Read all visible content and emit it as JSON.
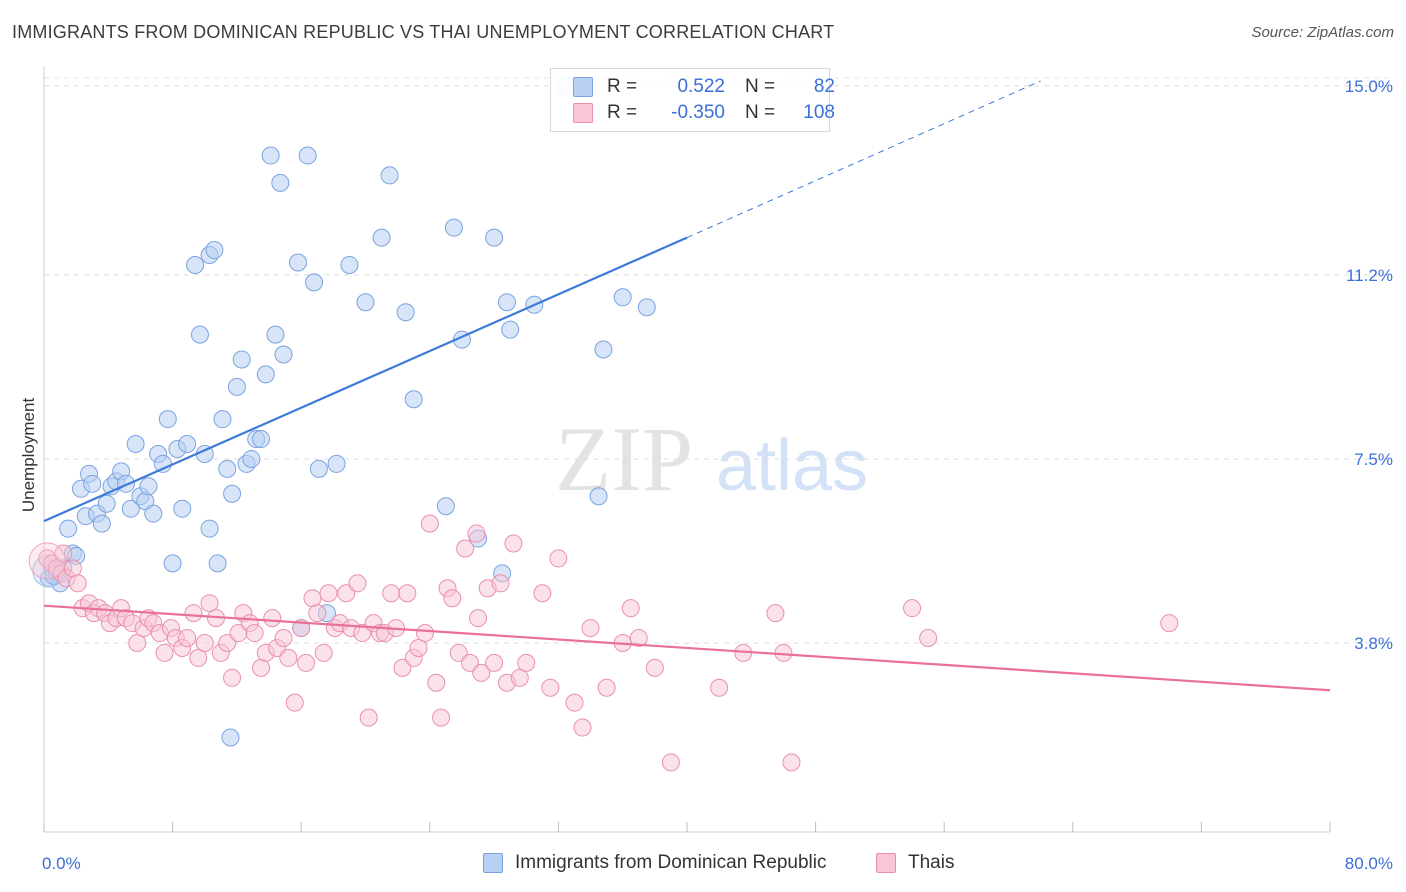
{
  "title": "IMMIGRANTS FROM DOMINICAN REPUBLIC VS THAI UNEMPLOYMENT CORRELATION CHART",
  "source": "Source: ZipAtlas.com",
  "watermark": {
    "zip": "ZIP",
    "atlas": "atlas"
  },
  "legend_top": {
    "r_label": "R =",
    "n_label": "N =",
    "rows": [
      {
        "r": "0.522",
        "n": "82",
        "fill": "#b8d0f3",
        "stroke": "#7aa3e0"
      },
      {
        "r": "-0.350",
        "n": "108",
        "fill": "#f8c6d6",
        "stroke": "#e990ad"
      }
    ]
  },
  "legend_bottom": [
    {
      "label": "Immigrants from Dominican Republic",
      "fill": "#b8d0f3",
      "stroke": "#7aa3e0"
    },
    {
      "label": "Thais",
      "fill": "#f8c6d6",
      "stroke": "#e990ad"
    }
  ],
  "chart_data": {
    "type": "scatter",
    "title": "IMMIGRANTS FROM DOMINICAN REPUBLIC VS THAI UNEMPLOYMENT CORRELATION CHART",
    "xlabel": "",
    "ylabel": "Unemployment",
    "xlim": [
      0,
      80
    ],
    "ylim": [
      0,
      15.4
    ],
    "x_tick_labels": [
      "0.0%",
      "80.0%"
    ],
    "y_ticks": [
      3.8,
      7.5,
      11.2,
      15.0
    ],
    "y_tick_labels": [
      "3.8%",
      "7.5%",
      "11.2%",
      "15.0%"
    ],
    "grid": true,
    "colors": {
      "blue": "#3b7ad8",
      "pink": "#e8709a",
      "blue_fill": "#b8d0f3",
      "pink_fill": "#f8c6d6"
    },
    "series": [
      {
        "name": "Immigrants from Dominican Republic",
        "color": "#3b7ad8",
        "trend": {
          "x": [
            0,
            40
          ],
          "y": [
            6.25,
            11.95
          ],
          "extended_to": [
            62,
            15.1
          ]
        },
        "points": [
          [
            0.3,
            5.1
          ],
          [
            0.5,
            5.3
          ],
          [
            0.8,
            5.2
          ],
          [
            1.0,
            5.0
          ],
          [
            1.2,
            5.3
          ],
          [
            1.5,
            6.1
          ],
          [
            1.8,
            5.6
          ],
          [
            2.0,
            5.55
          ],
          [
            2.3,
            6.9
          ],
          [
            2.6,
            6.35
          ],
          [
            2.8,
            7.2
          ],
          [
            3.0,
            7.0
          ],
          [
            3.3,
            6.4
          ],
          [
            3.6,
            6.2
          ],
          [
            3.9,
            6.6
          ],
          [
            4.2,
            6.95
          ],
          [
            4.5,
            7.05
          ],
          [
            4.8,
            7.25
          ],
          [
            5.1,
            7.0
          ],
          [
            5.4,
            6.5
          ],
          [
            5.7,
            7.8
          ],
          [
            6.0,
            6.75
          ],
          [
            6.3,
            6.65
          ],
          [
            6.5,
            6.95
          ],
          [
            6.8,
            6.4
          ],
          [
            7.1,
            7.6
          ],
          [
            7.4,
            7.4
          ],
          [
            7.7,
            8.3
          ],
          [
            8.0,
            5.4
          ],
          [
            8.3,
            7.7
          ],
          [
            8.6,
            6.5
          ],
          [
            8.9,
            7.8
          ],
          [
            9.4,
            11.4
          ],
          [
            9.7,
            10.0
          ],
          [
            10.0,
            7.6
          ],
          [
            10.3,
            11.6
          ],
          [
            10.6,
            11.7
          ],
          [
            10.3,
            6.1
          ],
          [
            10.8,
            5.4
          ],
          [
            11.1,
            8.3
          ],
          [
            11.4,
            7.3
          ],
          [
            11.7,
            6.8
          ],
          [
            12.0,
            8.95
          ],
          [
            12.3,
            9.5
          ],
          [
            12.6,
            7.4
          ],
          [
            12.9,
            7.5
          ],
          [
            13.2,
            7.9
          ],
          [
            13.5,
            7.9
          ],
          [
            13.8,
            9.2
          ],
          [
            14.1,
            13.6
          ],
          [
            14.4,
            10.0
          ],
          [
            14.7,
            13.05
          ],
          [
            14.9,
            9.6
          ],
          [
            15.8,
            11.45
          ],
          [
            16.0,
            4.1
          ],
          [
            16.4,
            13.6
          ],
          [
            16.8,
            11.05
          ],
          [
            17.1,
            7.3
          ],
          [
            17.6,
            4.4
          ],
          [
            18.2,
            7.4
          ],
          [
            19.0,
            11.4
          ],
          [
            20.0,
            10.65
          ],
          [
            21.0,
            11.95
          ],
          [
            21.5,
            13.2
          ],
          [
            22.5,
            10.45
          ],
          [
            23.0,
            8.7
          ],
          [
            25.0,
            6.55
          ],
          [
            25.5,
            12.15
          ],
          [
            26.0,
            9.9
          ],
          [
            27.0,
            5.9
          ],
          [
            28.0,
            11.95
          ],
          [
            28.5,
            5.2
          ],
          [
            28.8,
            10.65
          ],
          [
            29.0,
            10.1
          ],
          [
            30.5,
            10.6
          ],
          [
            34.5,
            6.75
          ],
          [
            34.8,
            9.7
          ],
          [
            36.0,
            10.75
          ],
          [
            37.5,
            10.55
          ],
          [
            11.6,
            1.9
          ],
          [
            32.5,
            15.0
          ],
          [
            0.6,
            5.15
          ]
        ]
      },
      {
        "name": "Thais",
        "color": "#e8709a",
        "trend": {
          "x": [
            0,
            80
          ],
          "y": [
            4.55,
            2.85
          ]
        },
        "points": [
          [
            0.2,
            5.5
          ],
          [
            0.5,
            5.4
          ],
          [
            0.8,
            5.3
          ],
          [
            1.1,
            5.2
          ],
          [
            1.4,
            5.1
          ],
          [
            1.8,
            5.3
          ],
          [
            2.1,
            5.0
          ],
          [
            2.4,
            4.5
          ],
          [
            2.8,
            4.6
          ],
          [
            3.1,
            4.4
          ],
          [
            3.4,
            4.5
          ],
          [
            3.8,
            4.4
          ],
          [
            4.1,
            4.2
          ],
          [
            4.5,
            4.3
          ],
          [
            4.8,
            4.5
          ],
          [
            5.1,
            4.3
          ],
          [
            5.5,
            4.2
          ],
          [
            5.8,
            3.8
          ],
          [
            6.2,
            4.1
          ],
          [
            6.5,
            4.3
          ],
          [
            6.8,
            4.2
          ],
          [
            7.2,
            4.0
          ],
          [
            7.5,
            3.6
          ],
          [
            7.9,
            4.1
          ],
          [
            8.2,
            3.9
          ],
          [
            8.6,
            3.7
          ],
          [
            8.9,
            3.9
          ],
          [
            9.3,
            4.4
          ],
          [
            9.6,
            3.5
          ],
          [
            10.0,
            3.8
          ],
          [
            10.3,
            4.6
          ],
          [
            10.7,
            4.3
          ],
          [
            11.0,
            3.6
          ],
          [
            11.4,
            3.8
          ],
          [
            11.7,
            3.1
          ],
          [
            12.1,
            4.0
          ],
          [
            12.4,
            4.4
          ],
          [
            12.8,
            4.2
          ],
          [
            13.1,
            4.0
          ],
          [
            13.5,
            3.3
          ],
          [
            13.8,
            3.6
          ],
          [
            14.2,
            4.3
          ],
          [
            14.5,
            3.7
          ],
          [
            14.9,
            3.9
          ],
          [
            15.2,
            3.5
          ],
          [
            15.6,
            2.6
          ],
          [
            16.0,
            4.1
          ],
          [
            16.3,
            3.4
          ],
          [
            16.7,
            4.7
          ],
          [
            17.0,
            4.4
          ],
          [
            17.4,
            3.6
          ],
          [
            17.7,
            4.8
          ],
          [
            18.1,
            4.1
          ],
          [
            18.4,
            4.2
          ],
          [
            18.8,
            4.8
          ],
          [
            19.1,
            4.1
          ],
          [
            19.5,
            5.0
          ],
          [
            19.8,
            4.0
          ],
          [
            20.2,
            2.3
          ],
          [
            20.5,
            4.2
          ],
          [
            20.9,
            4.0
          ],
          [
            21.2,
            4.0
          ],
          [
            21.6,
            4.8
          ],
          [
            21.9,
            4.1
          ],
          [
            22.3,
            3.3
          ],
          [
            22.6,
            4.8
          ],
          [
            23.0,
            3.5
          ],
          [
            23.3,
            3.7
          ],
          [
            23.7,
            4.0
          ],
          [
            24.0,
            6.2
          ],
          [
            24.4,
            3.0
          ],
          [
            24.7,
            2.3
          ],
          [
            25.1,
            4.9
          ],
          [
            25.4,
            4.7
          ],
          [
            25.8,
            3.6
          ],
          [
            26.2,
            5.7
          ],
          [
            26.5,
            3.4
          ],
          [
            26.9,
            6.0
          ],
          [
            27.2,
            3.2
          ],
          [
            27.6,
            4.9
          ],
          [
            28.0,
            3.4
          ],
          [
            28.4,
            5.0
          ],
          [
            28.8,
            3.0
          ],
          [
            29.2,
            5.8
          ],
          [
            29.6,
            3.1
          ],
          [
            30.0,
            3.4
          ],
          [
            31.0,
            4.8
          ],
          [
            31.5,
            2.9
          ],
          [
            32.0,
            5.5
          ],
          [
            33.0,
            2.6
          ],
          [
            33.5,
            2.1
          ],
          [
            34.0,
            4.1
          ],
          [
            35.0,
            2.9
          ],
          [
            36.0,
            3.8
          ],
          [
            36.5,
            4.5
          ],
          [
            37.0,
            3.9
          ],
          [
            38.0,
            3.3
          ],
          [
            39.0,
            1.4
          ],
          [
            42.0,
            2.9
          ],
          [
            43.5,
            3.6
          ],
          [
            45.5,
            4.4
          ],
          [
            46.0,
            3.6
          ],
          [
            46.5,
            1.4
          ],
          [
            54.0,
            4.5
          ],
          [
            55.0,
            3.9
          ],
          [
            70.0,
            4.2
          ],
          [
            1.2,
            5.6
          ],
          [
            27.0,
            4.3
          ]
        ]
      }
    ]
  }
}
